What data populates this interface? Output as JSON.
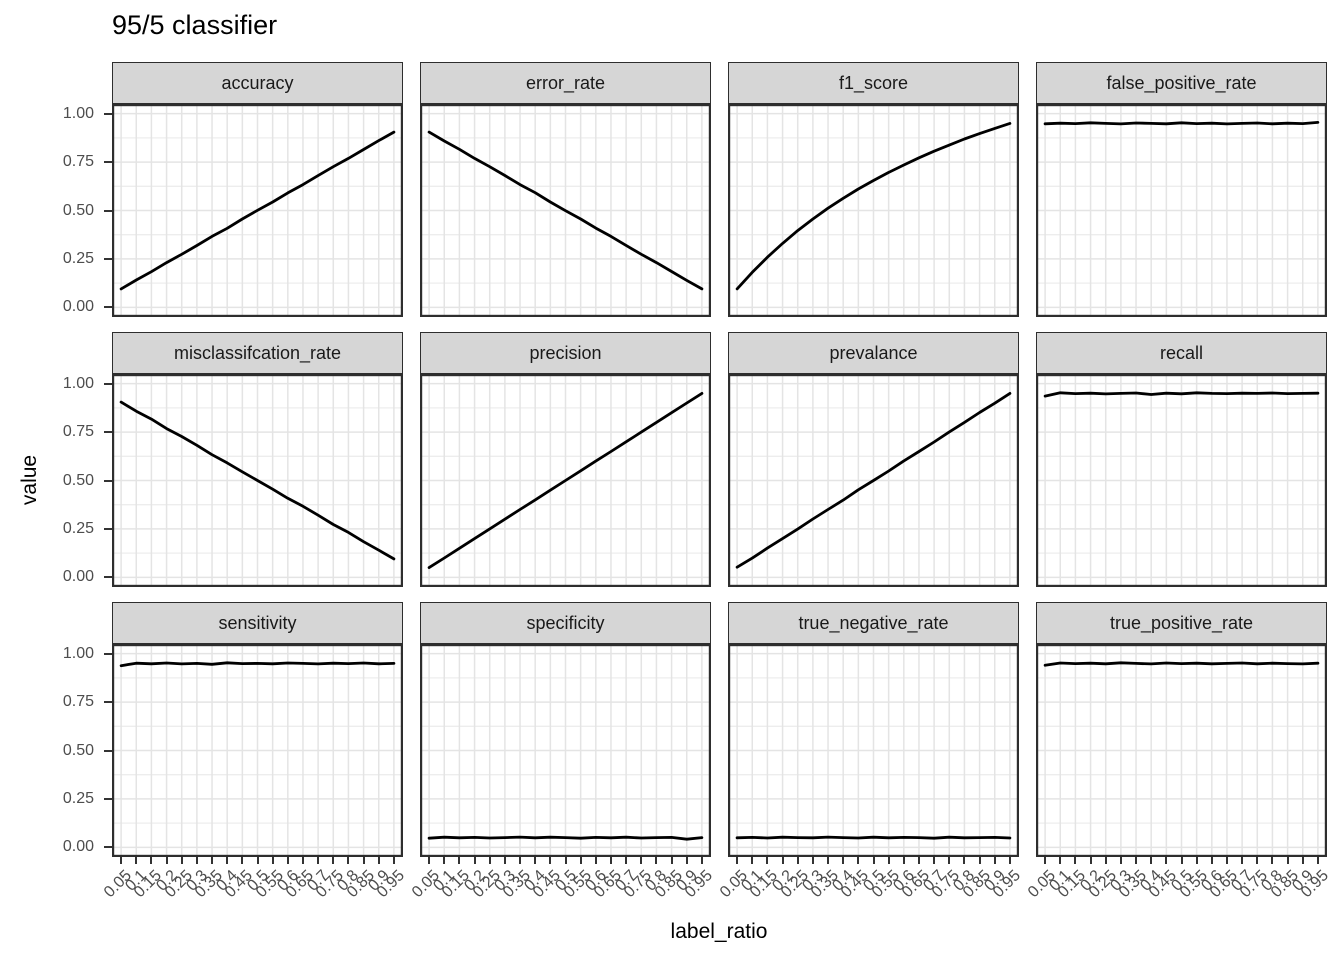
{
  "title": "95/5 classifier",
  "colors": {
    "strip_bg": "#d6d6d6",
    "panel_bg": "#ffffff",
    "panel_border": "#2e2e2e",
    "grid_major": "#e4e4e4",
    "grid_minor": "#ededed",
    "axis_text": "#4d4d4d",
    "tick": "#333333",
    "line": "#000000"
  },
  "chart_data": {
    "type": "line",
    "title": "95/5 classifier",
    "xlabel": "label_ratio",
    "ylabel": "value",
    "grid": true,
    "legend": false,
    "ylim": [
      0,
      1
    ],
    "y_ticks": [
      0,
      0.25,
      0.5,
      0.75,
      1
    ],
    "y_tick_labels": [
      "0.00",
      "0.25",
      "0.50",
      "0.75",
      "1.00"
    ],
    "y_minor_ticks": [
      0.125,
      0.375,
      0.625,
      0.875
    ],
    "x": [
      0.05,
      0.1,
      0.15,
      0.2,
      0.25,
      0.3,
      0.35,
      0.4,
      0.45,
      0.5,
      0.55,
      0.6,
      0.65,
      0.7,
      0.75,
      0.8,
      0.85,
      0.9,
      0.95
    ],
    "x_tick_labels": [
      "0.05",
      "0.1",
      "0.15",
      "0.2",
      "0.25",
      "0.3",
      "0.35",
      "0.4",
      "0.45",
      "0.5",
      "0.55",
      "0.6",
      "0.65",
      "0.7",
      "0.75",
      "0.8",
      "0.85",
      "0.9",
      "0.95"
    ],
    "facets": [
      {
        "label": "accuracy",
        "values": [
          0.095,
          0.141,
          0.184,
          0.231,
          0.274,
          0.319,
          0.366,
          0.408,
          0.456,
          0.501,
          0.544,
          0.591,
          0.634,
          0.68,
          0.726,
          0.769,
          0.815,
          0.861,
          0.905
        ]
      },
      {
        "label": "error_rate",
        "values": [
          0.905,
          0.859,
          0.816,
          0.769,
          0.726,
          0.681,
          0.634,
          0.592,
          0.544,
          0.499,
          0.456,
          0.409,
          0.366,
          0.32,
          0.274,
          0.231,
          0.185,
          0.139,
          0.095
        ]
      },
      {
        "label": "f1_score",
        "values": [
          0.095,
          0.181,
          0.259,
          0.33,
          0.396,
          0.456,
          0.512,
          0.563,
          0.611,
          0.655,
          0.697,
          0.735,
          0.772,
          0.806,
          0.838,
          0.869,
          0.897,
          0.924,
          0.95
        ]
      },
      {
        "label": "false_positive_rate",
        "values": [
          0.948,
          0.951,
          0.949,
          0.953,
          0.95,
          0.947,
          0.952,
          0.95,
          0.948,
          0.953,
          0.949,
          0.951,
          0.947,
          0.95,
          0.952,
          0.948,
          0.951,
          0.949,
          0.955
        ]
      },
      {
        "label": "misclassifcation_rate",
        "values": [
          0.905,
          0.858,
          0.817,
          0.768,
          0.727,
          0.682,
          0.633,
          0.591,
          0.545,
          0.5,
          0.455,
          0.408,
          0.367,
          0.321,
          0.273,
          0.232,
          0.184,
          0.14,
          0.095
        ]
      },
      {
        "label": "precision",
        "values": [
          0.05,
          0.1,
          0.15,
          0.2,
          0.25,
          0.3,
          0.35,
          0.4,
          0.45,
          0.5,
          0.55,
          0.6,
          0.65,
          0.7,
          0.75,
          0.8,
          0.85,
          0.9,
          0.95
        ]
      },
      {
        "label": "prevalance",
        "values": [
          0.052,
          0.099,
          0.151,
          0.2,
          0.249,
          0.301,
          0.35,
          0.399,
          0.452,
          0.5,
          0.549,
          0.601,
          0.65,
          0.699,
          0.751,
          0.8,
          0.851,
          0.899,
          0.95
        ]
      },
      {
        "label": "recall",
        "values": [
          0.936,
          0.953,
          0.949,
          0.951,
          0.947,
          0.95,
          0.952,
          0.944,
          0.951,
          0.948,
          0.953,
          0.95,
          0.949,
          0.951,
          0.95,
          0.952,
          0.949,
          0.95,
          0.951
        ]
      },
      {
        "label": "sensitivity",
        "values": [
          0.938,
          0.951,
          0.948,
          0.952,
          0.947,
          0.95,
          0.945,
          0.953,
          0.949,
          0.95,
          0.948,
          0.952,
          0.95,
          0.947,
          0.951,
          0.949,
          0.952,
          0.948,
          0.95
        ]
      },
      {
        "label": "specificity",
        "values": [
          0.047,
          0.052,
          0.049,
          0.051,
          0.048,
          0.05,
          0.053,
          0.049,
          0.052,
          0.05,
          0.047,
          0.051,
          0.049,
          0.052,
          0.048,
          0.05,
          0.051,
          0.042,
          0.05
        ]
      },
      {
        "label": "true_negative_rate",
        "values": [
          0.049,
          0.051,
          0.048,
          0.052,
          0.05,
          0.049,
          0.053,
          0.05,
          0.048,
          0.052,
          0.049,
          0.051,
          0.05,
          0.047,
          0.052,
          0.049,
          0.05,
          0.051,
          0.048
        ]
      },
      {
        "label": "true_positive_rate",
        "values": [
          0.94,
          0.952,
          0.949,
          0.951,
          0.948,
          0.953,
          0.95,
          0.947,
          0.952,
          0.949,
          0.951,
          0.948,
          0.95,
          0.952,
          0.948,
          0.951,
          0.949,
          0.947,
          0.951
        ]
      }
    ]
  }
}
